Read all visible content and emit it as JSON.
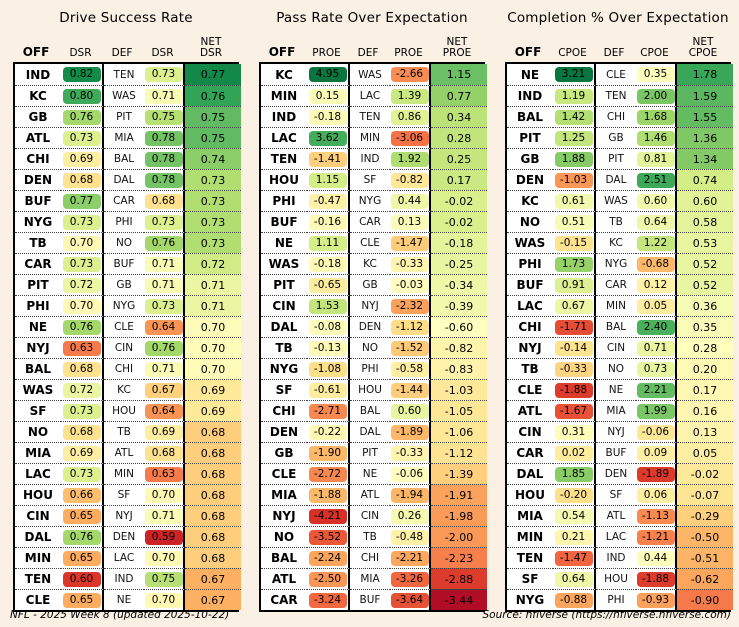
{
  "page": {
    "background": "#faf0e4",
    "footer_left": "NFL - 2025 Week 8 (updated 2025-10-22)",
    "footer_right": "Source: nflverse (https://nflverse.nflverse.com)"
  },
  "colormap_rdylgn": [
    "#a50026",
    "#d73027",
    "#f46d43",
    "#fdae61",
    "#fee08b",
    "#ffffbf",
    "#d9ef8b",
    "#a6d96a",
    "#66bd63",
    "#1a9850",
    "#006837"
  ],
  "chart_data": [
    {
      "type": "table",
      "title": "Drive Success Rate",
      "columns": [
        "OFF",
        "DSR",
        "DEF",
        "DSR",
        "NET\nDSR"
      ],
      "pill_scale": [
        0.57,
        0.84
      ],
      "net_scale": [
        0.622,
        0.781
      ],
      "rows": [
        {
          "off": "IND",
          "off_val": "0.82",
          "def": "TEN",
          "def_val": "0.73",
          "net": "0.77"
        },
        {
          "off": "KC",
          "off_val": "0.80",
          "def": "WAS",
          "def_val": "0.71",
          "net": "0.76"
        },
        {
          "off": "GB",
          "off_val": "0.76",
          "def": "PIT",
          "def_val": "0.75",
          "net": "0.75"
        },
        {
          "off": "ATL",
          "off_val": "0.73",
          "def": "MIA",
          "def_val": "0.78",
          "net": "0.75"
        },
        {
          "off": "CHI",
          "off_val": "0.69",
          "def": "BAL",
          "def_val": "0.78",
          "net": "0.74"
        },
        {
          "off": "DEN",
          "off_val": "0.68",
          "def": "DAL",
          "def_val": "0.78",
          "net": "0.73"
        },
        {
          "off": "BUF",
          "off_val": "0.77",
          "def": "CAR",
          "def_val": "0.68",
          "net": "0.73"
        },
        {
          "off": "NYG",
          "off_val": "0.73",
          "def": "PHI",
          "def_val": "0.73",
          "net": "0.73"
        },
        {
          "off": "TB",
          "off_val": "0.70",
          "def": "NO",
          "def_val": "0.76",
          "net": "0.73"
        },
        {
          "off": "CAR",
          "off_val": "0.73",
          "def": "BUF",
          "def_val": "0.71",
          "net": "0.72"
        },
        {
          "off": "PIT",
          "off_val": "0.72",
          "def": "GB",
          "def_val": "0.71",
          "net": "0.71"
        },
        {
          "off": "PHI",
          "off_val": "0.70",
          "def": "NYG",
          "def_val": "0.73",
          "net": "0.71"
        },
        {
          "off": "NE",
          "off_val": "0.76",
          "def": "CLE",
          "def_val": "0.64",
          "net": "0.70"
        },
        {
          "off": "NYJ",
          "off_val": "0.63",
          "def": "CIN",
          "def_val": "0.76",
          "net": "0.70"
        },
        {
          "off": "BAL",
          "off_val": "0.68",
          "def": "CHI",
          "def_val": "0.71",
          "net": "0.70"
        },
        {
          "off": "WAS",
          "off_val": "0.72",
          "def": "KC",
          "def_val": "0.67",
          "net": "0.69"
        },
        {
          "off": "SF",
          "off_val": "0.73",
          "def": "HOU",
          "def_val": "0.64",
          "net": "0.69"
        },
        {
          "off": "NO",
          "off_val": "0.68",
          "def": "TB",
          "def_val": "0.69",
          "net": "0.68"
        },
        {
          "off": "MIA",
          "off_val": "0.69",
          "def": "ATL",
          "def_val": "0.68",
          "net": "0.68"
        },
        {
          "off": "LAC",
          "off_val": "0.73",
          "def": "MIN",
          "def_val": "0.63",
          "net": "0.68"
        },
        {
          "off": "HOU",
          "off_val": "0.66",
          "def": "SF",
          "def_val": "0.70",
          "net": "0.68"
        },
        {
          "off": "CIN",
          "off_val": "0.65",
          "def": "NYJ",
          "def_val": "0.71",
          "net": "0.68"
        },
        {
          "off": "DAL",
          "off_val": "0.76",
          "def": "DEN",
          "def_val": "0.59",
          "net": "0.68"
        },
        {
          "off": "MIN",
          "off_val": "0.65",
          "def": "LAC",
          "def_val": "0.70",
          "net": "0.68"
        },
        {
          "off": "TEN",
          "off_val": "0.60",
          "def": "IND",
          "def_val": "0.75",
          "net": "0.67"
        },
        {
          "off": "CLE",
          "off_val": "0.65",
          "def": "NE",
          "def_val": "0.70",
          "net": "0.67"
        }
      ]
    },
    {
      "type": "table",
      "title": "Pass Rate Over Expectation",
      "columns": [
        "OFF",
        "PROE",
        "DEF",
        "PROE",
        "NET\nPROE"
      ],
      "pill_scale": [
        -5.26,
        5.26
      ],
      "net_scale": [
        -3.6,
        2.4
      ],
      "rows": [
        {
          "off": "KC",
          "off_val": "4.95",
          "def": "WAS",
          "def_val": "-2.66",
          "net": "1.15"
        },
        {
          "off": "MIN",
          "off_val": "0.15",
          "def": "LAC",
          "def_val": "1.39",
          "net": "0.77"
        },
        {
          "off": "IND",
          "off_val": "-0.18",
          "def": "TEN",
          "def_val": "0.86",
          "net": "0.34"
        },
        {
          "off": "LAC",
          "off_val": "3.62",
          "def": "MIN",
          "def_val": "-3.06",
          "net": "0.28"
        },
        {
          "off": "TEN",
          "off_val": "-1.41",
          "def": "IND",
          "def_val": "1.92",
          "net": "0.25"
        },
        {
          "off": "HOU",
          "off_val": "1.15",
          "def": "SF",
          "def_val": "-0.82",
          "net": "0.17"
        },
        {
          "off": "PHI",
          "off_val": "-0.47",
          "def": "NYG",
          "def_val": "0.44",
          "net": "-0.02"
        },
        {
          "off": "BUF",
          "off_val": "-0.16",
          "def": "CAR",
          "def_val": "0.13",
          "net": "-0.02"
        },
        {
          "off": "NE",
          "off_val": "1.11",
          "def": "CLE",
          "def_val": "-1.47",
          "net": "-0.18"
        },
        {
          "off": "WAS",
          "off_val": "-0.18",
          "def": "KC",
          "def_val": "-0.33",
          "net": "-0.25"
        },
        {
          "off": "PIT",
          "off_val": "-0.65",
          "def": "GB",
          "def_val": "-0.03",
          "net": "-0.34"
        },
        {
          "off": "CIN",
          "off_val": "1.53",
          "def": "NYJ",
          "def_val": "-2.32",
          "net": "-0.39"
        },
        {
          "off": "DAL",
          "off_val": "-0.08",
          "def": "DEN",
          "def_val": "-1.12",
          "net": "-0.60"
        },
        {
          "off": "TB",
          "off_val": "-0.13",
          "def": "NO",
          "def_val": "-1.52",
          "net": "-0.82"
        },
        {
          "off": "NYG",
          "off_val": "-1.08",
          "def": "PHI",
          "def_val": "-0.58",
          "net": "-0.83"
        },
        {
          "off": "SF",
          "off_val": "-0.61",
          "def": "HOU",
          "def_val": "-1.44",
          "net": "-1.03"
        },
        {
          "off": "CHI",
          "off_val": "-2.71",
          "def": "BAL",
          "def_val": "0.60",
          "net": "-1.05"
        },
        {
          "off": "DEN",
          "off_val": "-0.22",
          "def": "DAL",
          "def_val": "-1.89",
          "net": "-1.06"
        },
        {
          "off": "GB",
          "off_val": "-1.90",
          "def": "PIT",
          "def_val": "-0.33",
          "net": "-1.12"
        },
        {
          "off": "CLE",
          "off_val": "-2.72",
          "def": "NE",
          "def_val": "-0.06",
          "net": "-1.39"
        },
        {
          "off": "MIA",
          "off_val": "-1.88",
          "def": "ATL",
          "def_val": "-1.94",
          "net": "-1.91"
        },
        {
          "off": "NYJ",
          "off_val": "-4.21",
          "def": "CIN",
          "def_val": "0.26",
          "net": "-1.98"
        },
        {
          "off": "NO",
          "off_val": "-3.52",
          "def": "TB",
          "def_val": "-0.48",
          "net": "-2.00"
        },
        {
          "off": "BAL",
          "off_val": "-2.24",
          "def": "CHI",
          "def_val": "-2.21",
          "net": "-2.23"
        },
        {
          "off": "ATL",
          "off_val": "-2.50",
          "def": "MIA",
          "def_val": "-3.26",
          "net": "-2.88"
        },
        {
          "off": "CAR",
          "off_val": "-3.24",
          "def": "BUF",
          "def_val": "-3.64",
          "net": "-3.44"
        }
      ]
    },
    {
      "type": "table",
      "title": "Completion % Over Expectation",
      "columns": [
        "OFF",
        "CPOE",
        "DEF",
        "CPOE",
        "NET\nCPOE"
      ],
      "pill_scale": [
        -2.6,
        3.38
      ],
      "net_scale": [
        -1.82,
        2.37
      ],
      "rows": [
        {
          "off": "NE",
          "off_val": "3.21",
          "def": "CLE",
          "def_val": "0.35",
          "net": "1.78"
        },
        {
          "off": "IND",
          "off_val": "1.19",
          "def": "TEN",
          "def_val": "2.00",
          "net": "1.59"
        },
        {
          "off": "BAL",
          "off_val": "1.42",
          "def": "CHI",
          "def_val": "1.68",
          "net": "1.55"
        },
        {
          "off": "PIT",
          "off_val": "1.25",
          "def": "GB",
          "def_val": "1.46",
          "net": "1.36"
        },
        {
          "off": "GB",
          "off_val": "1.88",
          "def": "PIT",
          "def_val": "0.81",
          "net": "1.34"
        },
        {
          "off": "DEN",
          "off_val": "-1.03",
          "def": "DAL",
          "def_val": "2.51",
          "net": "0.74"
        },
        {
          "off": "KC",
          "off_val": "0.61",
          "def": "WAS",
          "def_val": "0.60",
          "net": "0.60"
        },
        {
          "off": "NO",
          "off_val": "0.51",
          "def": "TB",
          "def_val": "0.64",
          "net": "0.58"
        },
        {
          "off": "WAS",
          "off_val": "-0.15",
          "def": "KC",
          "def_val": "1.22",
          "net": "0.53"
        },
        {
          "off": "PHI",
          "off_val": "1.73",
          "def": "NYG",
          "def_val": "-0.68",
          "net": "0.52"
        },
        {
          "off": "BUF",
          "off_val": "0.91",
          "def": "CAR",
          "def_val": "0.12",
          "net": "0.52"
        },
        {
          "off": "LAC",
          "off_val": "0.67",
          "def": "MIN",
          "def_val": "0.05",
          "net": "0.36"
        },
        {
          "off": "CHI",
          "off_val": "-1.71",
          "def": "BAL",
          "def_val": "2.40",
          "net": "0.35"
        },
        {
          "off": "NYJ",
          "off_val": "-0.14",
          "def": "CIN",
          "def_val": "0.71",
          "net": "0.28"
        },
        {
          "off": "TB",
          "off_val": "-0.33",
          "def": "NO",
          "def_val": "0.73",
          "net": "0.20"
        },
        {
          "off": "CLE",
          "off_val": "-1.88",
          "def": "NE",
          "def_val": "2.21",
          "net": "0.17"
        },
        {
          "off": "ATL",
          "off_val": "-1.67",
          "def": "MIA",
          "def_val": "1.99",
          "net": "0.16"
        },
        {
          "off": "CIN",
          "off_val": "0.31",
          "def": "NYJ",
          "def_val": "-0.06",
          "net": "0.13"
        },
        {
          "off": "CAR",
          "off_val": "0.02",
          "def": "BUF",
          "def_val": "0.09",
          "net": "0.05"
        },
        {
          "off": "DAL",
          "off_val": "1.85",
          "def": "DEN",
          "def_val": "-1.89",
          "net": "-0.02"
        },
        {
          "off": "HOU",
          "off_val": "-0.20",
          "def": "SF",
          "def_val": "0.06",
          "net": "-0.07"
        },
        {
          "off": "MIA",
          "off_val": "0.54",
          "def": "ATL",
          "def_val": "-1.13",
          "net": "-0.29"
        },
        {
          "off": "MIN",
          "off_val": "0.21",
          "def": "LAC",
          "def_val": "-1.21",
          "net": "-0.50"
        },
        {
          "off": "TEN",
          "off_val": "-1.47",
          "def": "IND",
          "def_val": "0.44",
          "net": "-0.51"
        },
        {
          "off": "SF",
          "off_val": "0.64",
          "def": "HOU",
          "def_val": "-1.88",
          "net": "-0.62"
        },
        {
          "off": "NYG",
          "off_val": "-0.88",
          "def": "PHI",
          "def_val": "-0.93",
          "net": "-0.90"
        }
      ]
    }
  ]
}
